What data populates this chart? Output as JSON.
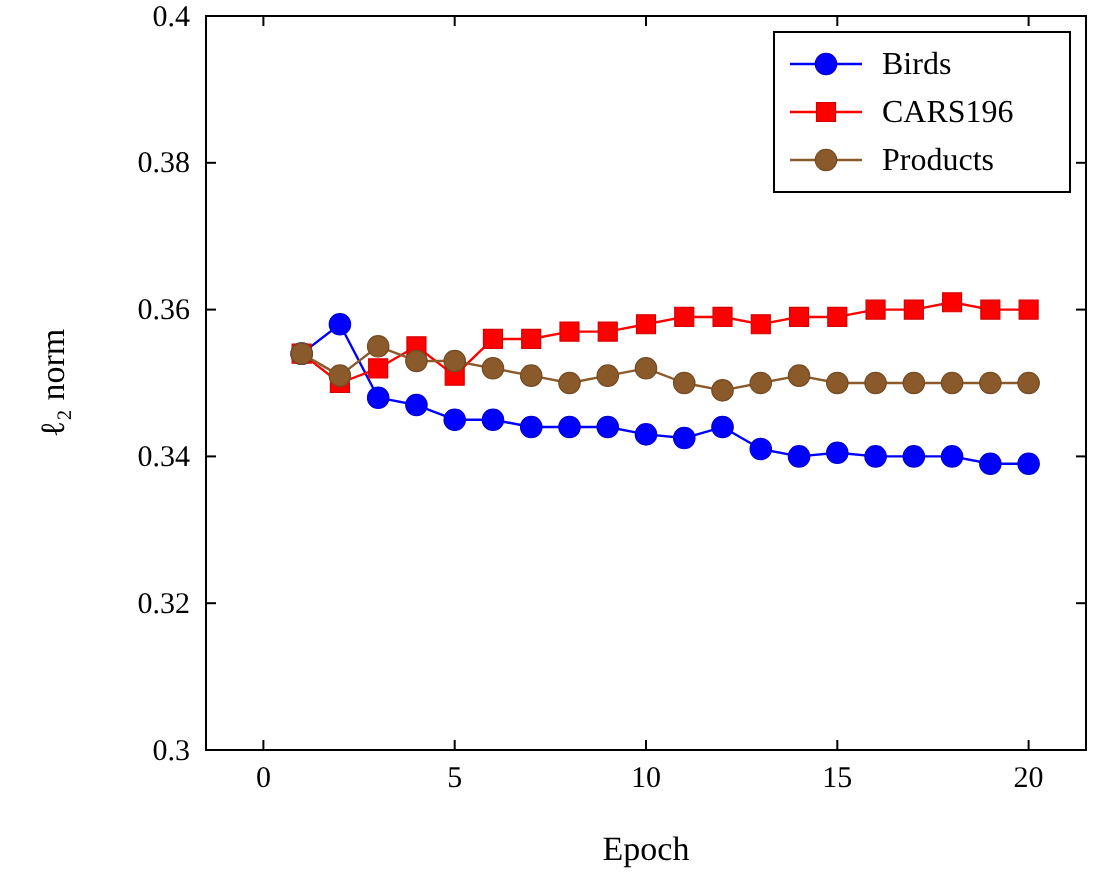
{
  "chart_data": {
    "type": "line",
    "xlabel": "Epoch",
    "ylabel": "ℓ₂ norm",
    "x": [
      1,
      2,
      3,
      4,
      5,
      6,
      7,
      8,
      9,
      10,
      11,
      12,
      13,
      14,
      15,
      16,
      17,
      18,
      19,
      20
    ],
    "xlim": [
      -1.5,
      21.5
    ],
    "xticks": [
      0,
      5,
      10,
      15,
      20
    ],
    "ylim": [
      0.3,
      0.4
    ],
    "yticks": [
      0.3,
      0.32,
      0.34,
      0.36,
      0.38,
      0.4
    ],
    "legend": "top right",
    "grid": false,
    "series": [
      {
        "name": "Birds",
        "color": "#0000ff",
        "marker": "circle",
        "values": [
          0.354,
          0.358,
          0.348,
          0.347,
          0.345,
          0.345,
          0.344,
          0.344,
          0.344,
          0.343,
          0.3425,
          0.344,
          0.341,
          0.34,
          0.3405,
          0.34,
          0.34,
          0.34,
          0.339,
          0.339
        ]
      },
      {
        "name": "CARS196",
        "color": "#ff0000",
        "marker": "square",
        "values": [
          0.354,
          0.35,
          0.352,
          0.355,
          0.351,
          0.356,
          0.356,
          0.357,
          0.357,
          0.358,
          0.359,
          0.359,
          0.358,
          0.359,
          0.359,
          0.36,
          0.36,
          0.361,
          0.36,
          0.36
        ]
      },
      {
        "name": "Products",
        "color": "#8b5a2b",
        "marker": "circle",
        "values": [
          0.354,
          0.351,
          0.355,
          0.353,
          0.353,
          0.352,
          0.351,
          0.35,
          0.351,
          0.352,
          0.35,
          0.349,
          0.35,
          0.351,
          0.35,
          0.35,
          0.35,
          0.35,
          0.35,
          0.35
        ]
      }
    ]
  }
}
